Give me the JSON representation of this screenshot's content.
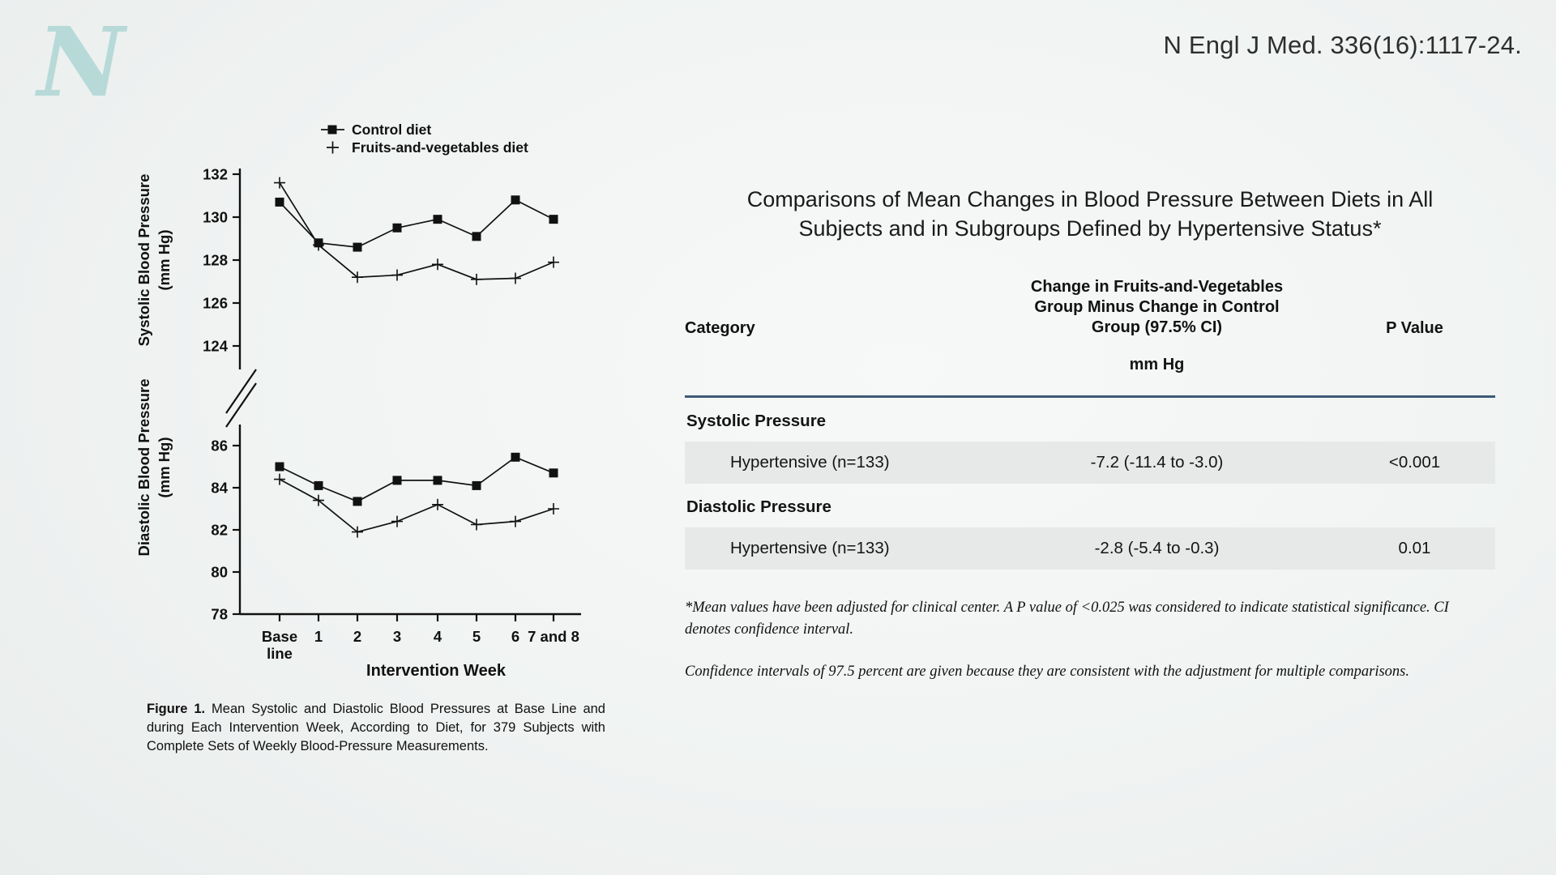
{
  "citation": "N Engl J Med. 336(16):1117-24.",
  "logo": {
    "letter": "N",
    "color": "#b7dad8"
  },
  "figure": {
    "caption_label": "Figure 1.",
    "caption_text": "Mean Systolic and Diastolic Blood Pressures at Base Line and during Each Intervention Week, According to Diet, for 379 Subjects with Complete Sets of Weekly Blood-Pressure Measurements."
  },
  "chart_data": {
    "type": "line",
    "x_categories": [
      "Base line",
      "1",
      "2",
      "3",
      "4",
      "5",
      "6",
      "7 and 8"
    ],
    "xlabel": "Intervention Week",
    "ink_color": "#111111",
    "grid": false,
    "legend_position": "top",
    "axis_break": true,
    "legend": [
      {
        "label": "Control diet",
        "marker": "square"
      },
      {
        "label": "Fruits-and-vegetables diet",
        "marker": "plus"
      }
    ],
    "panels": [
      {
        "name": "systolic",
        "ylabel": "Systolic Blood Pressure",
        "ylabel_unit": "(mm Hg)",
        "yticks": [
          132,
          130,
          128,
          126,
          124
        ],
        "ylim": [
          123.3,
          132.5
        ],
        "series": [
          {
            "name": "Control diet",
            "marker": "square",
            "values": [
              130.7,
              128.8,
              128.6,
              129.5,
              129.9,
              129.1,
              130.8,
              129.9
            ]
          },
          {
            "name": "Fruits-and-vegetables diet",
            "marker": "plus",
            "values": [
              131.6,
              128.7,
              127.2,
              127.3,
              127.8,
              127.1,
              127.15,
              127.9
            ]
          }
        ]
      },
      {
        "name": "diastolic",
        "ylabel": "Diastolic Blood Pressure",
        "ylabel_unit": "(mm Hg)",
        "yticks": [
          86,
          84,
          82,
          80,
          78
        ],
        "ylim": [
          77.9,
          86.6
        ],
        "series": [
          {
            "name": "Control diet",
            "marker": "square",
            "values": [
              85.0,
              84.1,
              83.35,
              84.35,
              84.35,
              84.1,
              85.45,
              84.7
            ]
          },
          {
            "name": "Fruits-and-vegetables diet",
            "marker": "plus",
            "values": [
              84.4,
              83.4,
              81.9,
              82.4,
              83.2,
              82.25,
              82.4,
              83.0
            ]
          }
        ]
      }
    ]
  },
  "table": {
    "title": "Comparisons of Mean Changes in Blood Pressure Between Diets in All Subjects and in Subgroups Defined by Hypertensive Status*",
    "headers": {
      "category": "Category",
      "change_lines": [
        "Change in Fruits-and-Vegetables",
        "Group Minus Change in Control",
        "Group (97.5% CI)"
      ],
      "p_value": "P Value",
      "unit": "mm Hg"
    },
    "accent_rule_color": "#3d5a78",
    "row_highlight_color": "#e7e9e8",
    "sections": [
      {
        "label": "Systolic Pressure",
        "rows": [
          {
            "category": "Hypertensive (n=133)",
            "change": "-7.2 (-11.4 to -3.0)",
            "p": "<0.001"
          }
        ]
      },
      {
        "label": "Diastolic Pressure",
        "rows": [
          {
            "category": "Hypertensive (n=133)",
            "change": "-2.8 (-5.4 to -0.3)",
            "p": "0.01"
          }
        ]
      }
    ]
  },
  "footnotes": [
    "*Mean values have been adjusted for clinical center. A P value of <0.025 was considered to indicate statistical significance. CI denotes confidence interval.",
    "Confidence intervals of 97.5 percent are given because they are consistent with the adjustment for multiple comparisons."
  ]
}
